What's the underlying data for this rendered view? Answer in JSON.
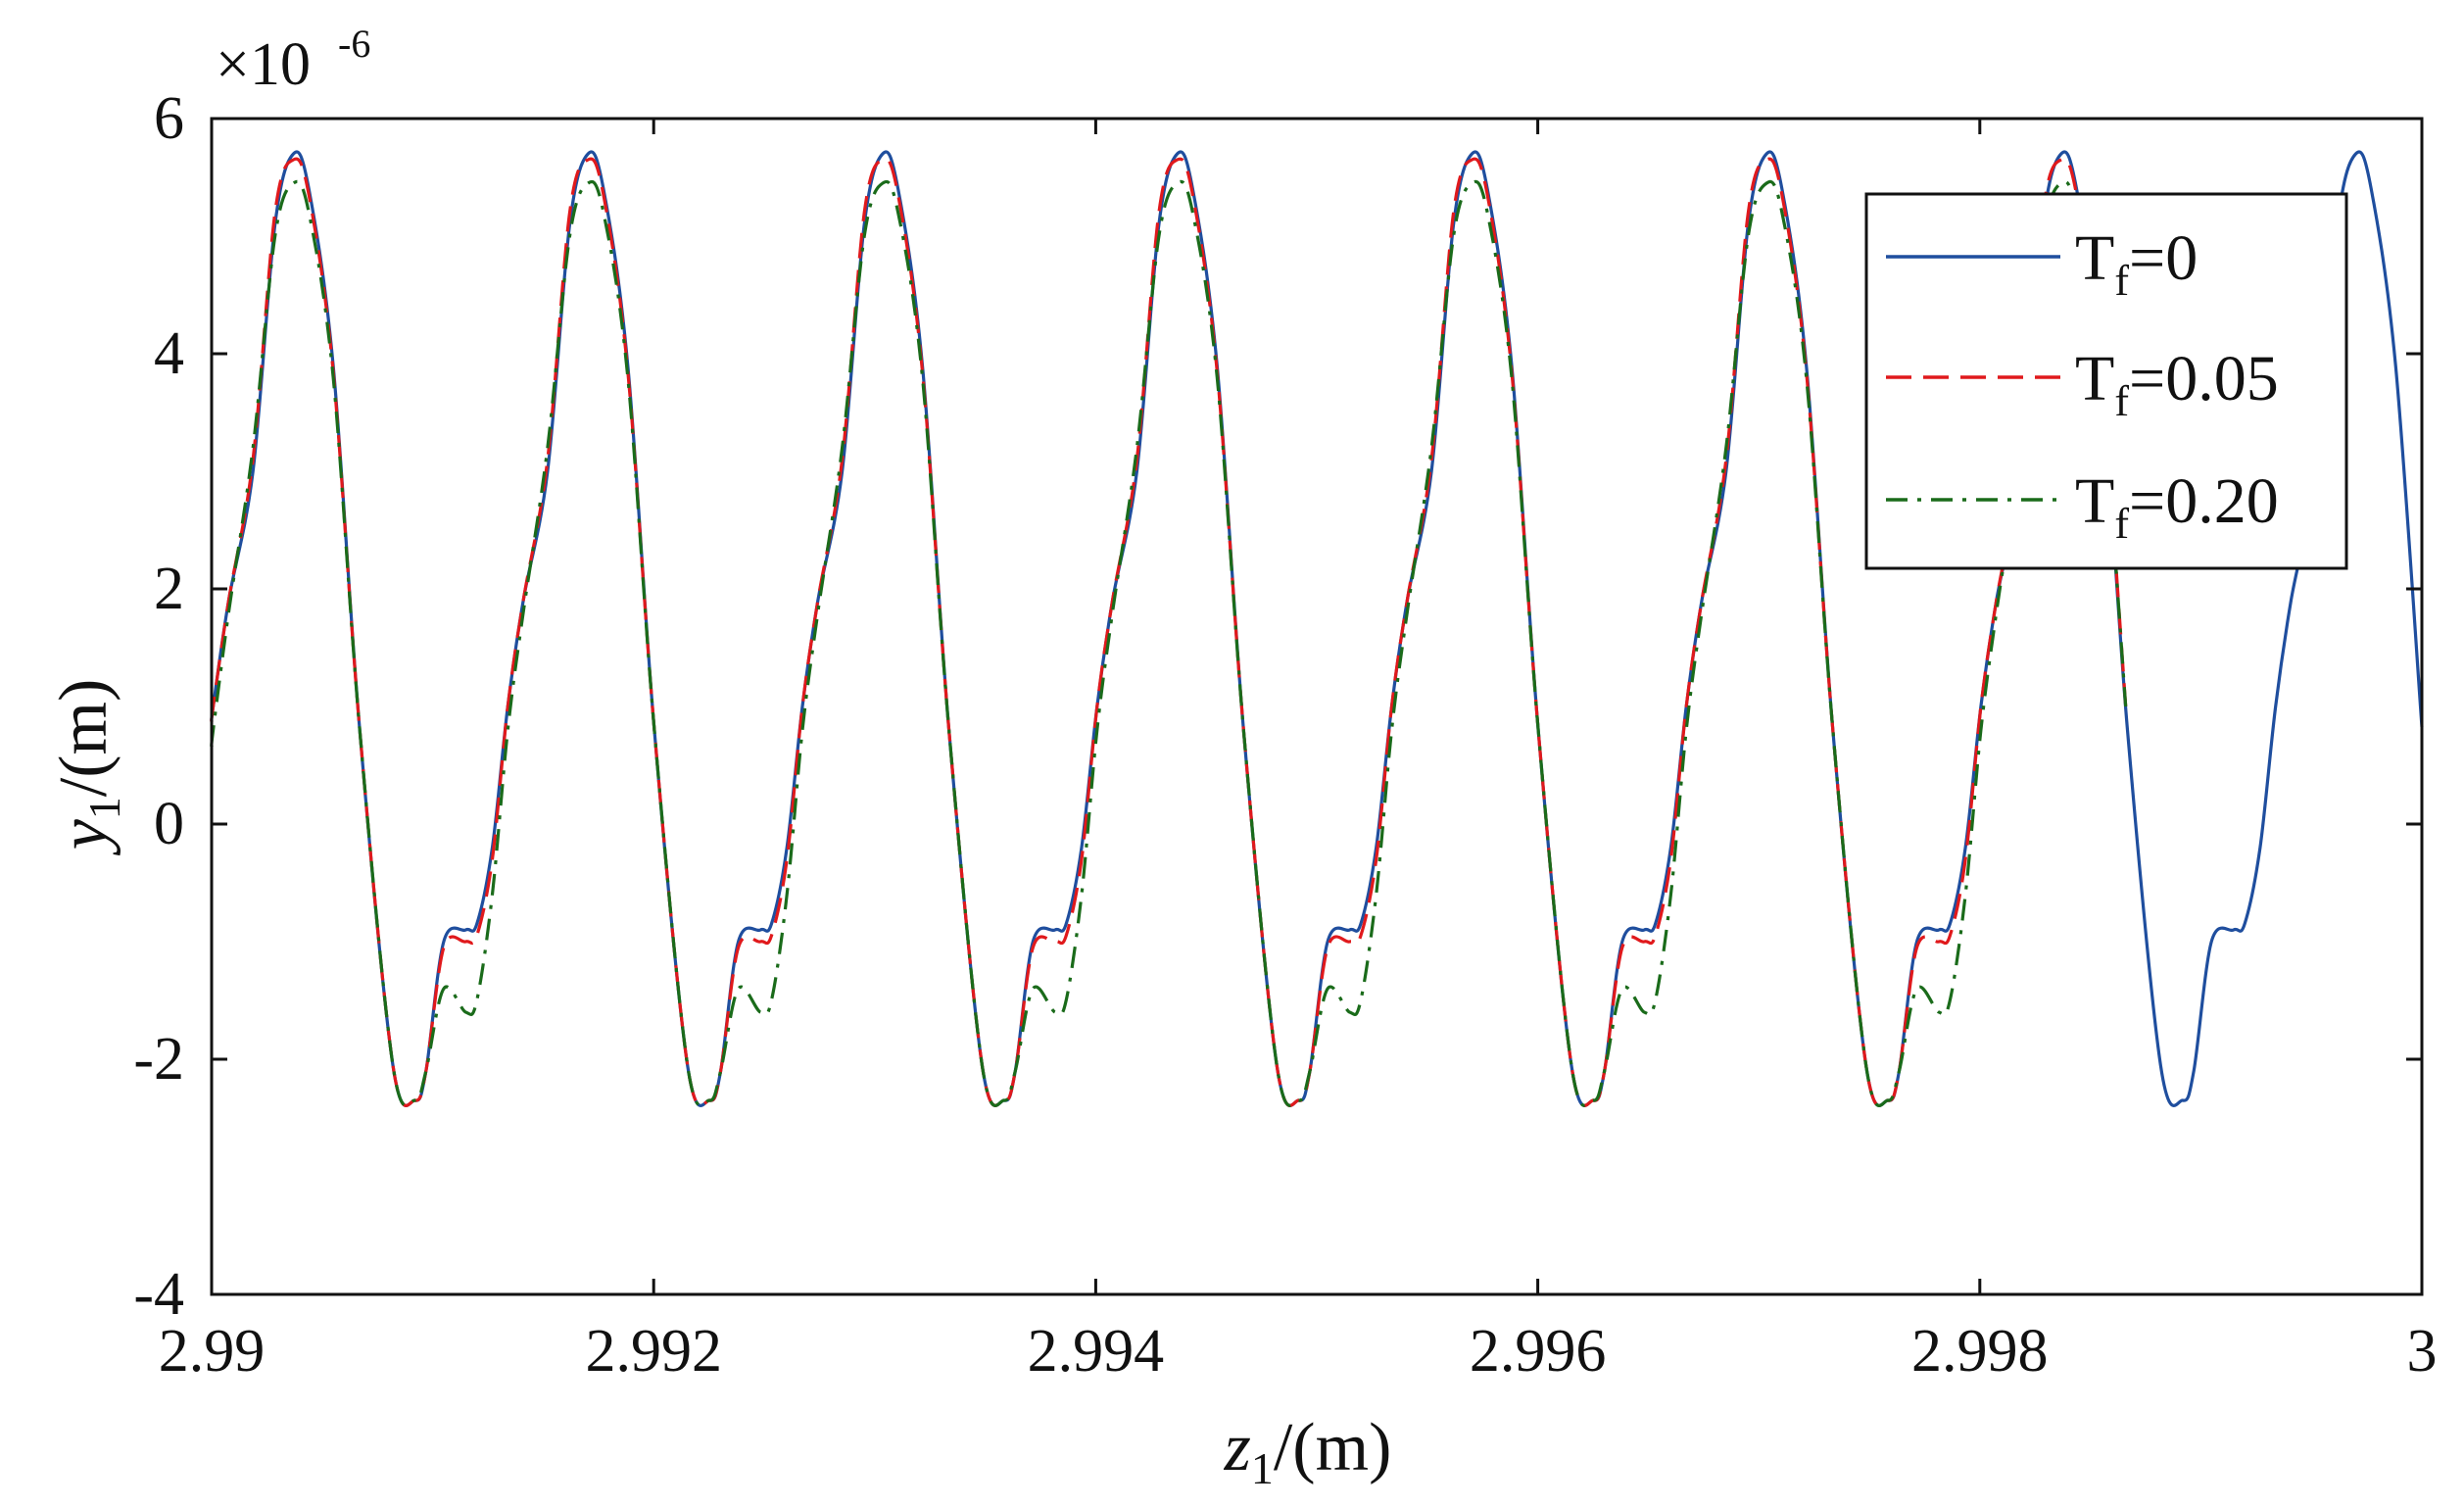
{
  "chart_data": {
    "type": "line",
    "title": "",
    "multiplier_label": "×10",
    "multiplier_exponent": "-6",
    "xlabel": {
      "main": "z",
      "sub": "1",
      "unit": "/(m)"
    },
    "ylabel": {
      "main": "y",
      "sub": "1",
      "unit": "/(m)"
    },
    "xlim": [
      2.99,
      3.0
    ],
    "ylim": [
      -4,
      6
    ],
    "x_ticks": [
      2.99,
      2.992,
      2.994,
      2.996,
      2.998,
      3.0
    ],
    "x_tick_labels": [
      "2.99",
      "2.992",
      "2.994",
      "2.996",
      "2.998",
      "3"
    ],
    "y_ticks": [
      -4,
      -2,
      0,
      2,
      4,
      6
    ],
    "y_tick_labels": [
      "-4",
      "-2",
      "0",
      "2",
      "4",
      "6"
    ],
    "grid": false,
    "legend_position": "top-right",
    "period": 0.001333,
    "first_peak_x": 2.99037,
    "series": [
      {
        "name": "Tf=0",
        "label_main": "T",
        "label_sub": "f",
        "label_value": "=0",
        "color": "#1f4e9e",
        "dash": "solid",
        "x_start": 2.99,
        "x_end": 3.0,
        "cycle_x": [
          0.0,
          7e-05,
          0.00018,
          0.0003,
          0.00045,
          0.00055,
          0.0006,
          0.00068,
          0.00078,
          0.00083,
          0.0009,
          0.00097,
          0.00104,
          0.00115,
          0.00125,
          0.001333
        ],
        "cycle_y": [
          5.7,
          5.4,
          3.9,
          0.8,
          -2.05,
          -2.35,
          -2.1,
          -1.0,
          -0.9,
          -0.85,
          -0.2,
          1.0,
          1.9,
          3.0,
          5.1,
          5.7
        ]
      },
      {
        "name": "Tf=0.05",
        "label_main": "T",
        "label_sub": "f",
        "label_value": "=0.05",
        "color": "#e0191c",
        "dash": "dashed",
        "x_start": 2.99,
        "x_end": 2.99866,
        "cycle_x": [
          0.0,
          7e-05,
          0.00018,
          0.0003,
          0.00045,
          0.00055,
          0.0006,
          0.00068,
          0.00078,
          0.00083,
          0.0009,
          0.00097,
          0.00104,
          0.00115,
          0.00125,
          0.001333
        ],
        "cycle_y": [
          5.65,
          5.35,
          3.85,
          0.8,
          -2.05,
          -2.35,
          -2.1,
          -1.05,
          -1.0,
          -0.95,
          -0.3,
          1.0,
          1.9,
          3.1,
          5.2,
          5.65
        ]
      },
      {
        "name": "Tf=0.20",
        "label_main": "T",
        "label_sub": "f",
        "label_value": "=0.20",
        "color": "#1a6b1a",
        "dash": "dashdot",
        "x_start": 2.99,
        "x_end": 2.99866,
        "cycle_x": [
          0.0,
          7e-05,
          0.00018,
          0.0003,
          0.00045,
          0.00055,
          0.0006,
          0.00068,
          0.00078,
          0.00083,
          0.0009,
          0.00097,
          0.00104,
          0.00115,
          0.00125,
          0.001333
        ],
        "cycle_y": [
          5.45,
          5.2,
          3.8,
          0.8,
          -2.05,
          -2.35,
          -2.1,
          -1.4,
          -1.6,
          -1.5,
          -0.6,
          0.8,
          1.8,
          3.2,
          5.0,
          5.45
        ]
      }
    ]
  }
}
